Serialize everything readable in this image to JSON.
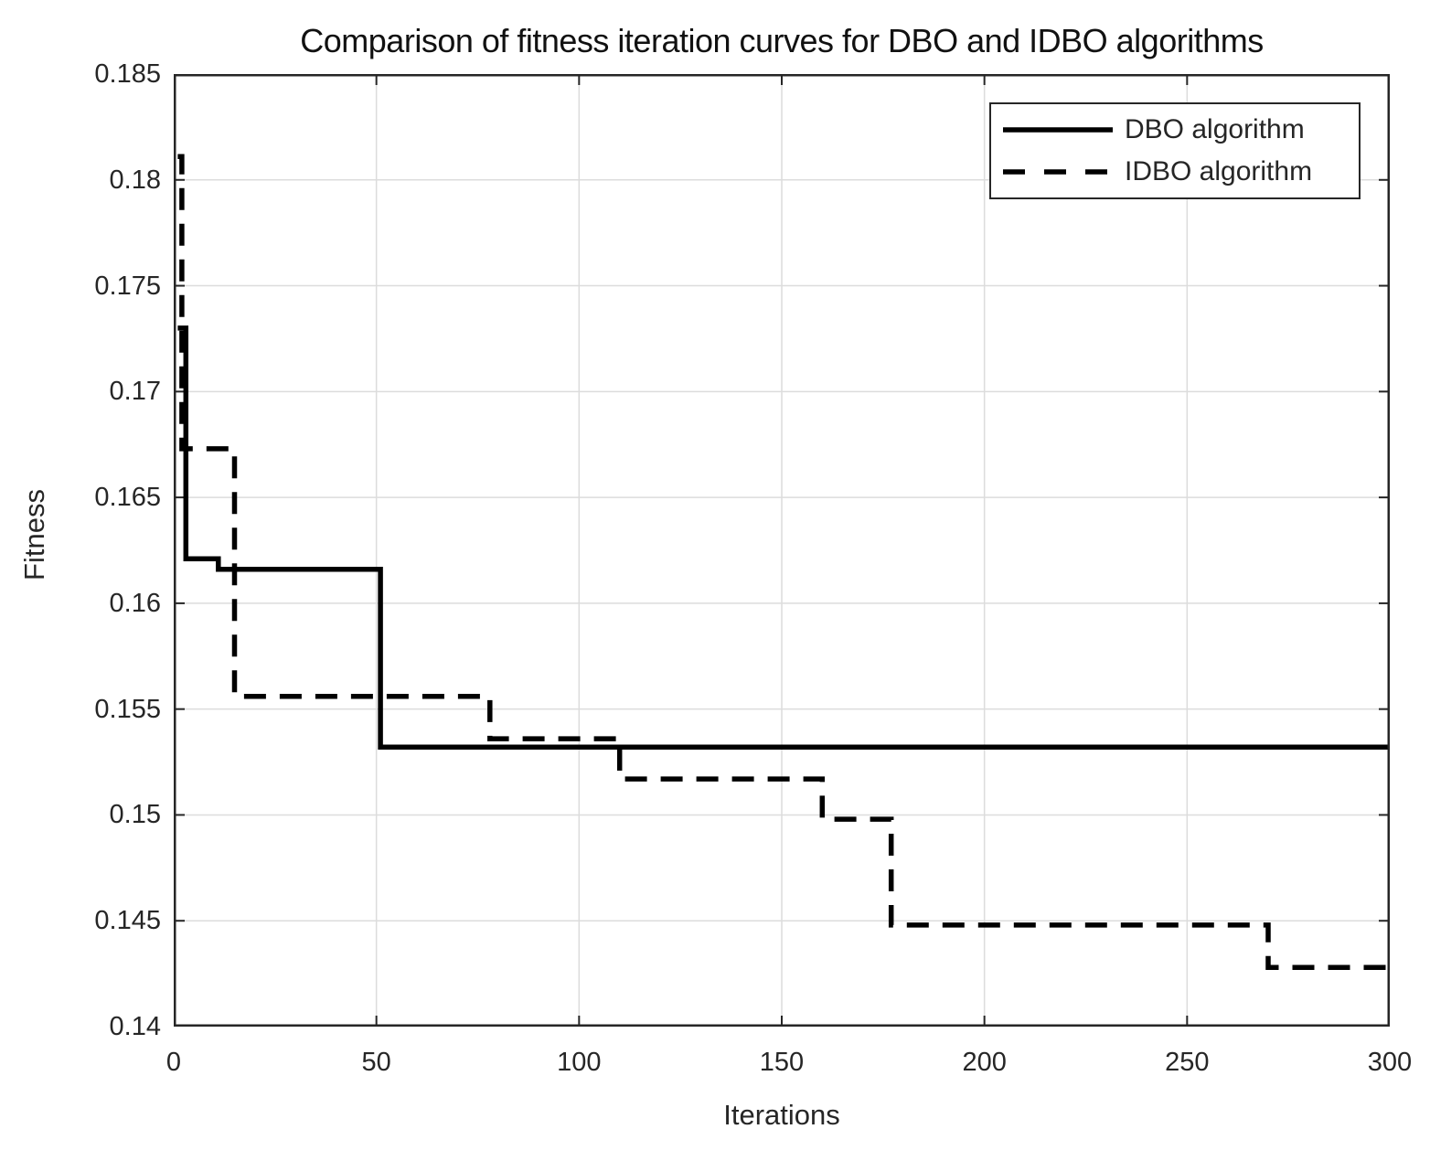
{
  "figure": {
    "title": "Comparison of fitness iteration curves for DBO and IDBO algorithms",
    "xlabel": "Iterations",
    "ylabel": "Fitness"
  },
  "legend": {
    "items": [
      {
        "label": "DBO algorithm",
        "line_style": "solid"
      },
      {
        "label": "IDBO algorithm",
        "line_style": "dashed"
      }
    ]
  },
  "colors": {
    "line": "#000000",
    "axis": "#262626",
    "grid": "#dcdcdc",
    "background": "#ffffff"
  },
  "chart_data": {
    "type": "line",
    "title": "Comparison of fitness iteration curves for DBO and IDBO algorithms",
    "xlabel": "Iterations",
    "ylabel": "Fitness",
    "xlim": [
      0,
      300
    ],
    "ylim": [
      0.14,
      0.185
    ],
    "x_ticks": [
      0,
      50,
      100,
      150,
      200,
      250,
      300
    ],
    "x_tick_labels": [
      "0",
      "50",
      "100",
      "150",
      "200",
      "250",
      "300"
    ],
    "y_ticks": [
      0.14,
      0.145,
      0.15,
      0.155,
      0.16,
      0.165,
      0.17,
      0.175,
      0.18,
      0.185
    ],
    "y_tick_labels": [
      "0.14",
      "0.145",
      "0.15",
      "0.155",
      "0.16",
      "0.165",
      "0.17",
      "0.175",
      "0.18",
      "0.185"
    ],
    "grid": true,
    "legend_position": "top-right",
    "line_shape": "step-after",
    "series": [
      {
        "name": "DBO algorithm",
        "slug": "dbo-curve",
        "line_style": "solid",
        "color": "#000000",
        "step_points": [
          [
            1,
            0.173
          ],
          [
            3,
            0.1621
          ],
          [
            11,
            0.1616
          ],
          [
            51,
            0.1532
          ]
        ],
        "x_end": 300
      },
      {
        "name": "IDBO algorithm",
        "slug": "idbo-curve",
        "line_style": "dashed",
        "color": "#000000",
        "step_points": [
          [
            1,
            0.1811
          ],
          [
            2,
            0.1673
          ],
          [
            15,
            0.1556
          ],
          [
            78,
            0.1536
          ],
          [
            110,
            0.1517
          ],
          [
            160,
            0.1498
          ],
          [
            177,
            0.1448
          ],
          [
            270,
            0.1428
          ]
        ],
        "x_end": 300
      }
    ]
  }
}
